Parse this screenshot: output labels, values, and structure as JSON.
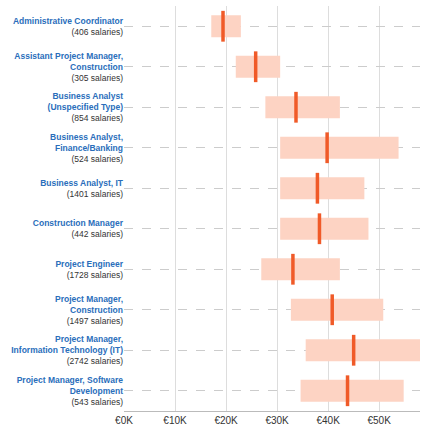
{
  "chart_data": {
    "type": "range",
    "orientation": "horizontal",
    "categories": [
      "Administrative Coordinator\n(406 salaries)",
      "Assistant Project Manager,\nConstruction\n(305 salaries)",
      "Business Analyst\n(Unspecified Type)\n(854 salaries)",
      "Business Analyst,\nFinance/Banking\n(524 salaries)",
      "Business Analyst, IT\n(1401 salaries)",
      "Construction Manager\n(442 salaries)",
      "Project Engineer\n(1728 salaries)",
      "Project Manager,\nConstruction\n(1497 salaries)",
      "Project Manager,\nInformation Technology (IT)\n(2742 salaries)",
      "Project Manager, Software\nDevelopment\n(543 salaries)"
    ],
    "series": [
      {
        "type": "range",
        "color": "#fdd3c3",
        "low": [
          17.1,
          21.9,
          27.7,
          30.6,
          30.6,
          30.6,
          26.9,
          32.7,
          35.6,
          34.6
        ],
        "high": [
          22.9,
          30.6,
          42.3,
          53.8,
          47.1,
          47.9,
          42.3,
          50.8,
          58.0,
          54.8
        ]
      },
      {
        "type": "median",
        "color": "#f05a28",
        "values": [
          19.4,
          25.8,
          33.7,
          39.8,
          37.9,
          38.3,
          33.1,
          40.8,
          45.0,
          43.8
        ]
      }
    ],
    "xlim": [
      0,
      58
    ],
    "xticks": [
      {
        "value": 0,
        "label": "€0K"
      },
      {
        "value": 10,
        "label": "€10K"
      },
      {
        "value": 20,
        "label": "€20K"
      },
      {
        "value": 30,
        "label": "€30K"
      },
      {
        "value": 40,
        "label": "€40K"
      },
      {
        "value": 50,
        "label": "€50K"
      }
    ],
    "grid": true
  }
}
